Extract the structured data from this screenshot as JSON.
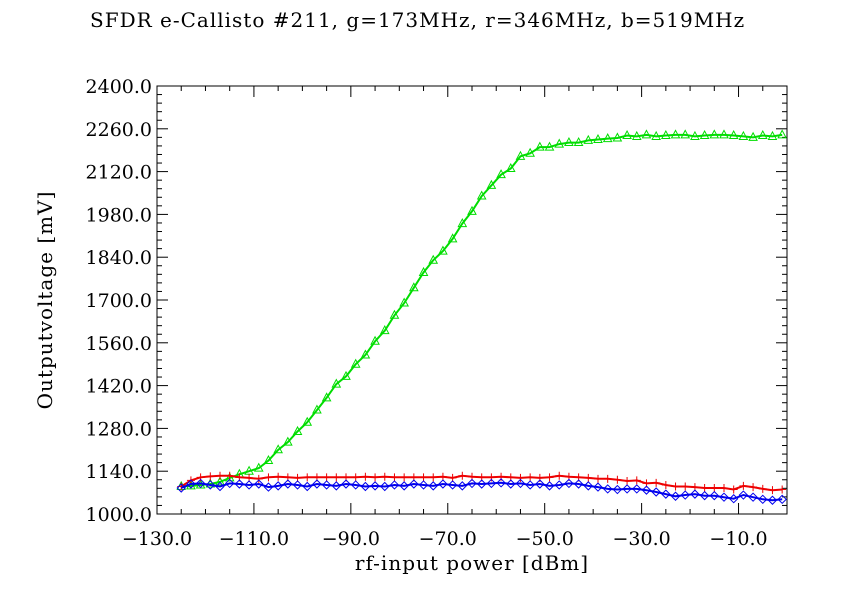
{
  "chart_data": {
    "type": "line",
    "title": "SFDR e-Callisto #211, g=173MHz, r=346MHz, b=519MHz",
    "xlabel": "rf-input power [dBm]",
    "ylabel": "Outputvoltage [mV]",
    "xlim": [
      -130,
      0
    ],
    "ylim": [
      1000,
      2400
    ],
    "x_ticks": [
      {
        "value": -130,
        "label": "−130.0"
      },
      {
        "value": -110,
        "label": "−110.0"
      },
      {
        "value": -90,
        "label": "−90.0"
      },
      {
        "value": -70,
        "label": "−70.0"
      },
      {
        "value": -50,
        "label": "−50.0"
      },
      {
        "value": -30,
        "label": "−30.0"
      },
      {
        "value": -10,
        "label": "−10.0"
      }
    ],
    "y_ticks": [
      {
        "value": 1000,
        "label": "1000.0"
      },
      {
        "value": 1140,
        "label": "1140.0"
      },
      {
        "value": 1280,
        "label": "1280.0"
      },
      {
        "value": 1420,
        "label": "1420.0"
      },
      {
        "value": 1560,
        "label": "1560.0"
      },
      {
        "value": 1700,
        "label": "1700.0"
      },
      {
        "value": 1840,
        "label": "1840.0"
      },
      {
        "value": 1980,
        "label": "1980.0"
      },
      {
        "value": 2120,
        "label": "2120.0"
      },
      {
        "value": 2260,
        "label": "2260.0"
      },
      {
        "value": 2400,
        "label": "2400.0"
      }
    ],
    "grid": false,
    "series": [
      {
        "marker": "triangle",
        "color": "#00dd00",
        "x": [
          -125,
          -123,
          -121,
          -119,
          -117,
          -115,
          -113,
          -111,
          -109,
          -107,
          -105,
          -103,
          -101,
          -99,
          -97,
          -95,
          -93,
          -91,
          -89,
          -87,
          -85,
          -83,
          -81,
          -79,
          -77,
          -75,
          -73,
          -71,
          -69,
          -67,
          -65,
          -63,
          -61,
          -59,
          -57,
          -55,
          -53,
          -51,
          -49,
          -47,
          -45,
          -43,
          -41,
          -39,
          -37,
          -35,
          -33,
          -31,
          -29,
          -27,
          -25,
          -23,
          -21,
          -19,
          -17,
          -15,
          -13,
          -11,
          -9,
          -7,
          -5,
          -3,
          -1
        ],
        "y": [
          1090,
          1092,
          1095,
          1098,
          1105,
          1118,
          1130,
          1140,
          1150,
          1175,
          1210,
          1235,
          1270,
          1300,
          1340,
          1380,
          1425,
          1450,
          1490,
          1520,
          1565,
          1600,
          1650,
          1690,
          1740,
          1790,
          1830,
          1860,
          1900,
          1950,
          1990,
          2040,
          2075,
          2110,
          2130,
          2170,
          2180,
          2200,
          2200,
          2210,
          2215,
          2215,
          2222,
          2225,
          2228,
          2230,
          2238,
          2235,
          2240,
          2235,
          2238,
          2240,
          2240,
          2235,
          2238,
          2240,
          2240,
          2238,
          2235,
          2232,
          2238,
          2235,
          2240
        ]
      },
      {
        "marker": "plus",
        "color": "#ee0000",
        "x": [
          -125,
          -123,
          -121,
          -119,
          -117,
          -115,
          -113,
          -111,
          -109,
          -107,
          -105,
          -103,
          -101,
          -99,
          -97,
          -95,
          -93,
          -91,
          -89,
          -87,
          -85,
          -83,
          -81,
          -79,
          -77,
          -75,
          -73,
          -71,
          -69,
          -67,
          -65,
          -63,
          -61,
          -59,
          -57,
          -55,
          -53,
          -51,
          -49,
          -47,
          -45,
          -43,
          -41,
          -39,
          -37,
          -35,
          -33,
          -31,
          -29,
          -27,
          -25,
          -23,
          -21,
          -19,
          -17,
          -15,
          -13,
          -11,
          -9,
          -7,
          -5,
          -3,
          -1
        ],
        "y": [
          1090,
          1110,
          1120,
          1123,
          1125,
          1125,
          1120,
          1118,
          1115,
          1120,
          1122,
          1120,
          1118,
          1120,
          1120,
          1120,
          1120,
          1120,
          1120,
          1122,
          1120,
          1122,
          1120,
          1120,
          1120,
          1120,
          1120,
          1122,
          1118,
          1125,
          1122,
          1120,
          1120,
          1122,
          1120,
          1118,
          1120,
          1118,
          1120,
          1125,
          1122,
          1120,
          1118,
          1115,
          1115,
          1112,
          1108,
          1110,
          1100,
          1102,
          1095,
          1090,
          1090,
          1088,
          1085,
          1085,
          1085,
          1080,
          1092,
          1088,
          1082,
          1078,
          1080
        ]
      },
      {
        "marker": "diamond",
        "color": "#0000ee",
        "x": [
          -125,
          -123,
          -121,
          -119,
          -117,
          -115,
          -113,
          -111,
          -109,
          -107,
          -105,
          -103,
          -101,
          -99,
          -97,
          -95,
          -93,
          -91,
          -89,
          -87,
          -85,
          -83,
          -81,
          -79,
          -77,
          -75,
          -73,
          -71,
          -69,
          -67,
          -65,
          -63,
          -61,
          -59,
          -57,
          -55,
          -53,
          -51,
          -49,
          -47,
          -45,
          -43,
          -41,
          -39,
          -37,
          -35,
          -33,
          -31,
          -29,
          -27,
          -25,
          -23,
          -21,
          -19,
          -17,
          -15,
          -13,
          -11,
          -9,
          -7,
          -5,
          -3,
          -1
        ],
        "y": [
          1085,
          1098,
          1100,
          1095,
          1090,
          1100,
          1098,
          1095,
          1098,
          1088,
          1092,
          1098,
          1095,
          1090,
          1098,
          1095,
          1092,
          1098,
          1095,
          1090,
          1092,
          1090,
          1095,
          1092,
          1098,
          1095,
          1092,
          1098,
          1095,
          1092,
          1100,
          1098,
          1100,
          1102,
          1098,
          1100,
          1095,
          1098,
          1092,
          1095,
          1100,
          1098,
          1092,
          1088,
          1082,
          1080,
          1082,
          1082,
          1078,
          1072,
          1065,
          1058,
          1062,
          1065,
          1060,
          1060,
          1055,
          1050,
          1062,
          1055,
          1048,
          1045,
          1048
        ]
      }
    ]
  }
}
